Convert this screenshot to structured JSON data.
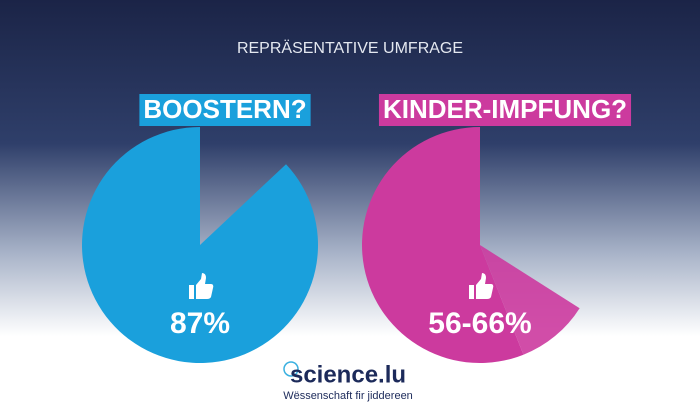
{
  "header": {
    "title": "REPRÄSENTATIVE UMFRAGE"
  },
  "chart_data": [
    {
      "type": "pie",
      "title": "BOOSTERN?",
      "color": "#1aa0dc",
      "values": [
        87
      ],
      "value_labels": [
        "87%"
      ]
    },
    {
      "type": "pie-range",
      "title": "KINDER-IMPFUNG?",
      "color": "#cc3a9e",
      "values": [
        56,
        66
      ],
      "value_labels": [
        "56-66%"
      ]
    }
  ],
  "logo": {
    "name": "science.lu",
    "tagline": "Wëssenschaft fir jiddereen"
  }
}
